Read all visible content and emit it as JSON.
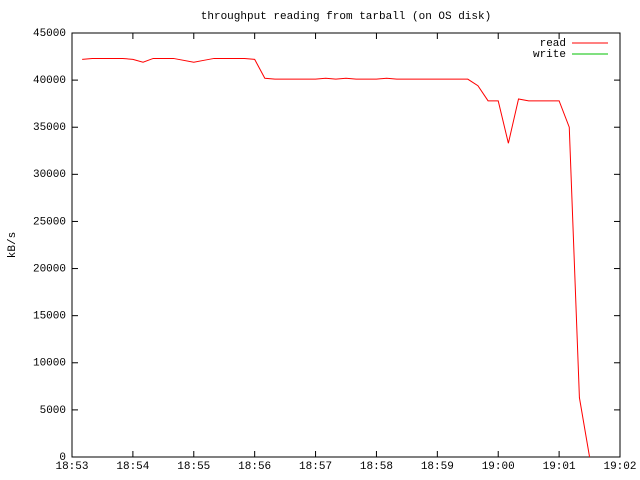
{
  "chart_data": {
    "type": "line",
    "title": "throughput reading from tarball (on OS disk)",
    "y_label": "kB/s",
    "x": [
      "18:53:10",
      "18:53:20",
      "18:53:50",
      "18:54:00",
      "18:54:10",
      "18:54:20",
      "18:54:40",
      "18:55:00",
      "18:55:10",
      "18:55:20",
      "18:55:50",
      "18:56:00",
      "18:56:10",
      "18:56:20",
      "18:57:00",
      "18:57:10",
      "18:57:20",
      "18:57:30",
      "18:57:40",
      "18:58:00",
      "18:58:10",
      "18:58:20",
      "18:59:30",
      "18:59:40",
      "18:59:50",
      "19:00:00",
      "19:00:10",
      "19:00:20",
      "19:00:30",
      "19:01:00",
      "19:01:10",
      "19:01:20",
      "19:01:30"
    ],
    "series": [
      {
        "name": "read",
        "color": "#ff0000",
        "values": [
          42200,
          42300,
          42300,
          42200,
          41900,
          42300,
          42300,
          41900,
          42100,
          42300,
          42300,
          42200,
          40200,
          40100,
          40100,
          40200,
          40100,
          40200,
          40100,
          40100,
          40200,
          40100,
          40100,
          39400,
          37800,
          37800,
          33300,
          38000,
          37800,
          37800,
          35000,
          6300,
          0
        ]
      },
      {
        "name": "write",
        "color": "#00c000",
        "values": [
          null,
          null,
          null,
          null,
          null,
          null,
          null,
          null,
          null,
          null,
          null,
          null,
          null,
          null,
          null,
          null,
          null,
          null,
          null,
          null,
          null,
          null,
          null,
          null,
          null,
          null,
          null,
          null,
          null,
          null,
          null,
          null,
          null
        ]
      }
    ],
    "xlim": [
      "18:53",
      "19:02"
    ],
    "xticks": [
      "18:53",
      "18:54",
      "18:55",
      "18:56",
      "18:57",
      "18:58",
      "18:59",
      "19:00",
      "19:01",
      "19:02"
    ],
    "ylim": [
      0,
      45000
    ],
    "yticks": [
      0,
      5000,
      10000,
      15000,
      20000,
      25000,
      30000,
      35000,
      40000,
      45000
    ],
    "legend": "top-right"
  }
}
